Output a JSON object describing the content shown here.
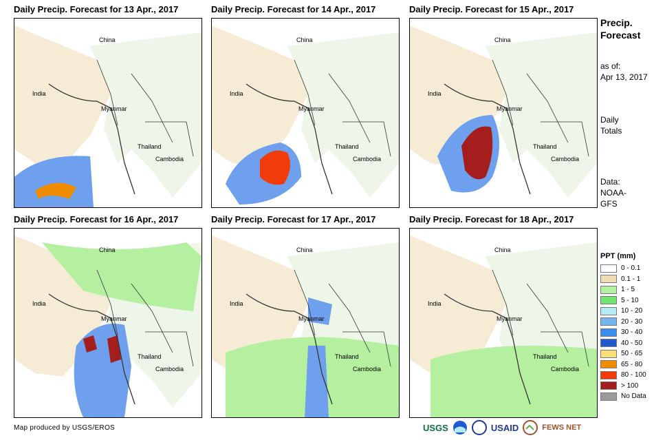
{
  "panels": [
    {
      "title": "Daily Precip. Forecast for 13 Apr., 2017",
      "labels": {
        "china": "China",
        "india": "India",
        "myanmar": "Myanmar",
        "thailand": "Thailand",
        "cambodia": "Cambodia"
      }
    },
    {
      "title": "Daily Precip. Forecast for 14 Apr., 2017",
      "labels": {
        "china": "China",
        "india": "India",
        "myanmar": "Myanmar",
        "thailand": "Thailand",
        "cambodia": "Cambodia"
      }
    },
    {
      "title": "Daily Precip. Forecast for 15 Apr., 2017",
      "labels": {
        "china": "China",
        "india": "India",
        "myanmar": "Myanmar",
        "thailand": "Thailand",
        "cambodia": "Cambodia"
      }
    },
    {
      "title": "Daily Precip. Forecast for 16 Apr., 2017",
      "labels": {
        "china": "China",
        "india": "India",
        "myanmar": "Myanmar",
        "thailand": "Thailand",
        "cambodia": "Cambodia"
      }
    },
    {
      "title": "Daily Precip. Forecast for 17 Apr., 2017",
      "labels": {
        "china": "China",
        "india": "India",
        "myanmar": "Myanmar",
        "thailand": "Thailand",
        "cambodia": "Cambodia"
      }
    },
    {
      "title": "Daily Precip. Forecast for 18 Apr., 2017",
      "labels": {
        "china": "China",
        "india": "India",
        "myanmar": "Myanmar",
        "thailand": "Thailand",
        "cambodia": "Cambodia"
      }
    }
  ],
  "side": {
    "title_line1": "Precip.",
    "title_line2": "Forecast",
    "asof_line1": "as of:",
    "asof_line2": "Apr 13, 2017",
    "totals_line1": "Daily",
    "totals_line2": "Totals",
    "data_line1": "Data:",
    "data_line2": "NOAA-",
    "data_line3": "GFS"
  },
  "legend": {
    "title": "PPT (mm)",
    "items": [
      {
        "label": "0 - 0.1",
        "color": "#ffffff"
      },
      {
        "label": "0.1 - 1",
        "color": "#f0dcb4"
      },
      {
        "label": "1 - 5",
        "color": "#b4f0a0"
      },
      {
        "label": "5 - 10",
        "color": "#6ee66e"
      },
      {
        "label": "10 - 20",
        "color": "#b4ebf5"
      },
      {
        "label": "20 - 30",
        "color": "#78b4f0"
      },
      {
        "label": "30 - 40",
        "color": "#3c8cf0"
      },
      {
        "label": "40 - 50",
        "color": "#1e5ad2"
      },
      {
        "label": "50 - 65",
        "color": "#fade78"
      },
      {
        "label": "65 - 80",
        "color": "#f08c00"
      },
      {
        "label": "80 - 100",
        "color": "#f03c0a"
      },
      {
        "label": "> 100",
        "color": "#a51e1e"
      },
      {
        "label": "No Data",
        "color": "#9b9b9b"
      }
    ]
  },
  "footer": {
    "credit": "Map produced by USGS/EROS",
    "logo_usgs": "USGS",
    "logo_usaid": "USAID",
    "logo_fewsnet": "FEWS NET"
  }
}
